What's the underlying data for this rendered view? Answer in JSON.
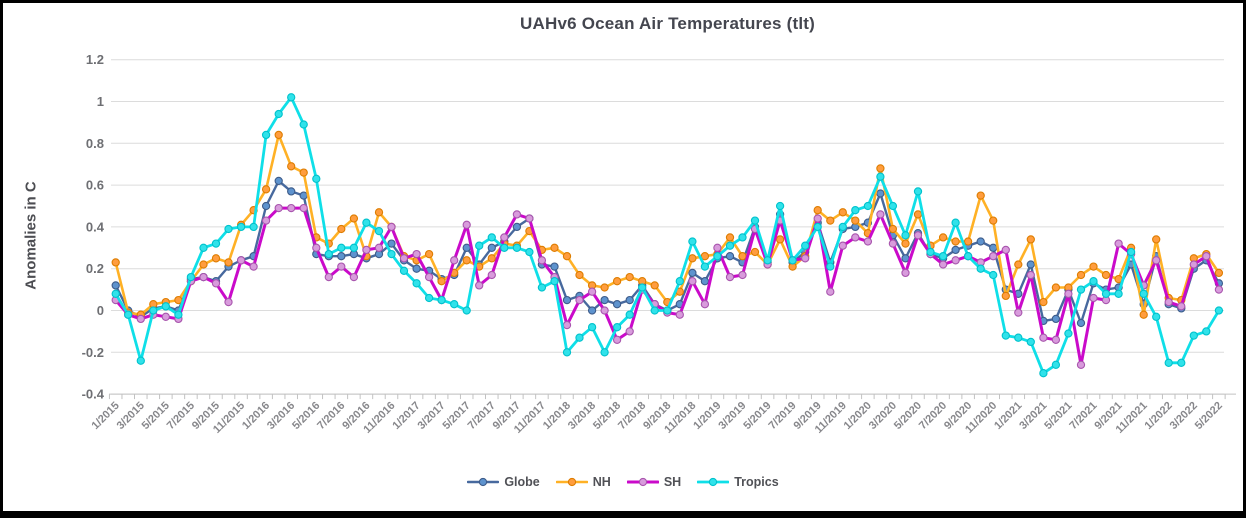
{
  "title": "UAHv6 Ocean Air Temperatures (tlt)",
  "y_axis_title": "Anomalies in C",
  "colors": {
    "border": "#000000",
    "grid": "#dcdcdc",
    "title_text": "#44464f",
    "tick_text": "#87878b",
    "legend_text": "#505156"
  },
  "chart_data": {
    "type": "line",
    "title": "UAHv6 Ocean Air Temperatures (tlt)",
    "xlabel": "",
    "ylabel": "Anomalies in C",
    "ylim": [
      -0.4,
      1.2
    ],
    "ytick_step": 0.2,
    "grid": "horizontal",
    "legend_position": "bottom",
    "x_tick_label_every": 2,
    "x": [
      "1/2015",
      "2/2015",
      "3/2015",
      "4/2015",
      "5/2015",
      "6/2015",
      "7/2015",
      "8/2015",
      "9/2015",
      "10/2015",
      "11/2015",
      "12/2015",
      "1/2016",
      "2/2016",
      "3/2016",
      "4/2016",
      "5/2016",
      "6/2016",
      "7/2016",
      "8/2016",
      "9/2016",
      "10/2016",
      "11/2016",
      "12/2016",
      "1/2017",
      "2/2017",
      "3/2017",
      "4/2017",
      "5/2017",
      "6/2017",
      "7/2017",
      "8/2017",
      "9/2017",
      "10/2017",
      "11/2017",
      "12/2017",
      "1/2018",
      "2/2018",
      "3/2018",
      "4/2018",
      "5/2018",
      "6/2018",
      "7/2018",
      "8/2018",
      "9/2018",
      "10/2018",
      "11/2018",
      "12/2018",
      "1/2019",
      "2/2019",
      "3/2019",
      "4/2019",
      "5/2019",
      "6/2019",
      "7/2019",
      "8/2019",
      "9/2019",
      "10/2019",
      "11/2019",
      "12/2019",
      "1/2020",
      "2/2020",
      "3/2020",
      "4/2020",
      "5/2020",
      "6/2020",
      "7/2020",
      "8/2020",
      "9/2020",
      "10/2020",
      "11/2020",
      "12/2020",
      "1/2021",
      "2/2021",
      "3/2021",
      "4/2021",
      "5/2021",
      "6/2021",
      "7/2021",
      "8/2021",
      "9/2021",
      "10/2021",
      "11/2021",
      "12/2021",
      "1/2022",
      "2/2022",
      "3/2022",
      "4/2022",
      "5/2022"
    ],
    "series": [
      {
        "name": "Globe",
        "line_color": "#47699e",
        "marker_color": "#5e93ce",
        "marker_edge": "#3e5c8a",
        "line_width": 2.4,
        "values": [
          0.12,
          0.0,
          -0.03,
          0.01,
          0.02,
          0.0,
          0.15,
          0.16,
          0.14,
          0.21,
          0.24,
          0.26,
          0.5,
          0.62,
          0.57,
          0.55,
          0.27,
          0.26,
          0.26,
          0.27,
          0.25,
          0.27,
          0.32,
          0.24,
          0.2,
          0.19,
          0.15,
          0.17,
          0.3,
          0.22,
          0.3,
          0.33,
          0.4,
          0.44,
          0.22,
          0.21,
          0.05,
          0.07,
          0.0,
          0.05,
          0.03,
          0.05,
          0.12,
          0.03,
          0.0,
          0.03,
          0.18,
          0.14,
          0.25,
          0.26,
          0.23,
          0.4,
          0.23,
          0.46,
          0.23,
          0.28,
          0.42,
          0.23,
          0.39,
          0.4,
          0.42,
          0.56,
          0.36,
          0.25,
          0.37,
          0.27,
          0.25,
          0.29,
          0.31,
          0.33,
          0.3,
          0.1,
          0.08,
          0.22,
          -0.05,
          -0.04,
          0.1,
          -0.06,
          0.13,
          0.1,
          0.11,
          0.22,
          0.03,
          0.26,
          0.03,
          0.01,
          0.2,
          0.24,
          0.13
        ]
      },
      {
        "name": "NH",
        "line_color": "#ffb125",
        "marker_color": "#ff9d3e",
        "marker_edge": "#de7d00",
        "line_width": 2.6,
        "values": [
          0.23,
          -0.01,
          -0.02,
          0.03,
          0.04,
          0.05,
          0.14,
          0.22,
          0.25,
          0.23,
          0.41,
          0.48,
          0.58,
          0.84,
          0.69,
          0.66,
          0.35,
          0.32,
          0.39,
          0.44,
          0.26,
          0.47,
          0.4,
          0.26,
          0.24,
          0.27,
          0.14,
          0.18,
          0.24,
          0.21,
          0.25,
          0.32,
          0.31,
          0.38,
          0.29,
          0.3,
          0.26,
          0.17,
          0.12,
          0.11,
          0.14,
          0.16,
          0.14,
          0.12,
          0.04,
          0.09,
          0.25,
          0.26,
          0.27,
          0.35,
          0.26,
          0.28,
          0.22,
          0.34,
          0.21,
          0.26,
          0.48,
          0.43,
          0.47,
          0.43,
          0.37,
          0.68,
          0.39,
          0.32,
          0.46,
          0.31,
          0.35,
          0.33,
          0.33,
          0.55,
          0.43,
          0.07,
          0.22,
          0.34,
          0.04,
          0.11,
          0.11,
          0.17,
          0.21,
          0.17,
          0.15,
          0.3,
          -0.02,
          0.34,
          0.06,
          0.05,
          0.25,
          0.27,
          0.18
        ]
      },
      {
        "name": "SH",
        "line_color": "#ca0aca",
        "marker_color": "#d89bdc",
        "marker_edge": "#a855ad",
        "line_width": 3.0,
        "values": [
          0.05,
          -0.02,
          -0.04,
          -0.02,
          -0.03,
          -0.04,
          0.14,
          0.16,
          0.13,
          0.04,
          0.24,
          0.21,
          0.43,
          0.49,
          0.49,
          0.49,
          0.3,
          0.16,
          0.21,
          0.16,
          0.29,
          0.3,
          0.4,
          0.25,
          0.27,
          0.16,
          0.05,
          0.24,
          0.41,
          0.12,
          0.17,
          0.35,
          0.46,
          0.44,
          0.24,
          0.16,
          -0.07,
          0.05,
          0.09,
          0.0,
          -0.14,
          -0.1,
          0.1,
          0.03,
          -0.01,
          -0.02,
          0.14,
          0.03,
          0.3,
          0.16,
          0.17,
          0.39,
          0.22,
          0.43,
          0.24,
          0.25,
          0.44,
          0.09,
          0.31,
          0.35,
          0.33,
          0.46,
          0.32,
          0.18,
          0.36,
          0.27,
          0.22,
          0.24,
          0.26,
          0.23,
          0.26,
          0.29,
          -0.01,
          0.17,
          -0.13,
          -0.14,
          0.08,
          -0.26,
          0.06,
          0.05,
          0.32,
          0.27,
          0.12,
          0.24,
          0.04,
          0.02,
          0.22,
          0.26,
          0.1
        ]
      },
      {
        "name": "Tropics",
        "line_color": "#0fdfe8",
        "marker_color": "#30e2ea",
        "marker_edge": "#00c2cc",
        "line_width": 2.8,
        "values": [
          0.08,
          -0.02,
          -0.24,
          0.0,
          0.02,
          -0.02,
          0.16,
          0.3,
          0.32,
          0.39,
          0.4,
          0.4,
          0.84,
          0.94,
          1.02,
          0.89,
          0.63,
          0.27,
          0.3,
          0.3,
          0.42,
          0.38,
          0.27,
          0.19,
          0.13,
          0.06,
          0.05,
          0.03,
          0.0,
          0.31,
          0.35,
          0.3,
          0.3,
          0.28,
          0.11,
          0.14,
          -0.2,
          -0.13,
          -0.08,
          -0.2,
          -0.08,
          -0.02,
          0.11,
          0.0,
          0.0,
          0.14,
          0.33,
          0.21,
          0.26,
          0.31,
          0.35,
          0.43,
          0.24,
          0.5,
          0.24,
          0.31,
          0.4,
          0.21,
          0.4,
          0.48,
          0.5,
          0.64,
          0.5,
          0.36,
          0.57,
          0.28,
          0.26,
          0.42,
          0.26,
          0.2,
          0.17,
          -0.12,
          -0.13,
          -0.15,
          -0.3,
          -0.26,
          -0.11,
          0.1,
          0.14,
          0.08,
          0.08,
          0.28,
          0.08,
          -0.03,
          -0.25,
          -0.25,
          -0.12,
          -0.1,
          0.0
        ]
      }
    ]
  }
}
